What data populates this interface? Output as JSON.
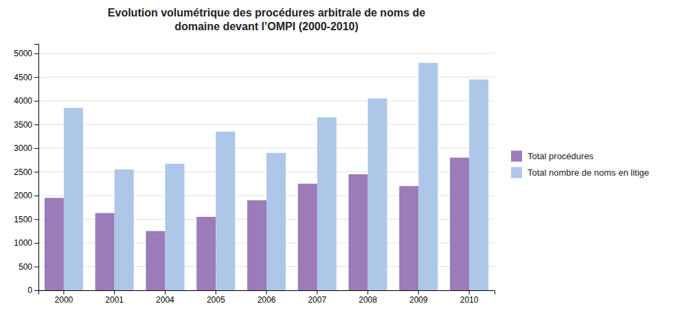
{
  "chart_data": {
    "type": "bar",
    "title": "Evolution volumétrique des procédures arbitrale de noms de\ndomaine devant l’OMPI (2000-2010)",
    "categories": [
      "2000",
      "2001",
      "2004",
      "2005",
      "2006",
      "2007",
      "2008",
      "2009",
      "2010"
    ],
    "series": [
      {
        "name": "Total procédures",
        "color": "#9b7bb8",
        "values": [
          1950,
          1630,
          1250,
          1550,
          1900,
          2250,
          2450,
          2200,
          2800
        ]
      },
      {
        "name": "Total nombre de noms en litige",
        "color": "#aec6e8",
        "values": [
          3850,
          2550,
          2670,
          3350,
          2900,
          3650,
          4050,
          4800,
          4450
        ]
      }
    ],
    "ylim": [
      0,
      5200
    ],
    "yticks": [
      0,
      500,
      1000,
      1500,
      2000,
      2500,
      3000,
      3500,
      4000,
      4500,
      5000
    ],
    "grid": true,
    "legend": "right"
  }
}
